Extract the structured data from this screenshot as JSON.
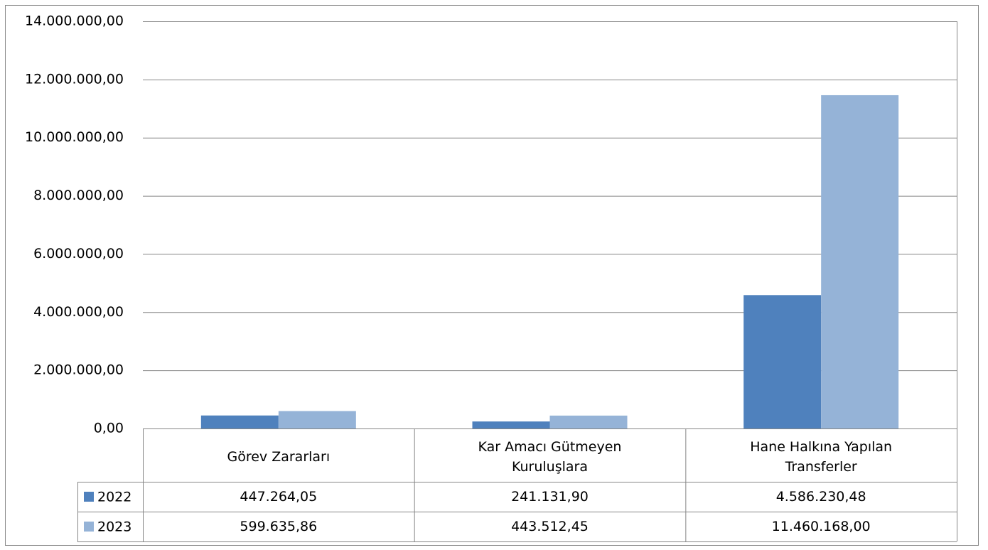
{
  "chart_data": {
    "type": "bar",
    "categories": [
      "Görev Zararları",
      "Kar Amacı Gütmeyen Kuruluşlara",
      "Hane Halkına Yapılan Transferler"
    ],
    "series": [
      {
        "name": "2022",
        "color": "#4f81bd",
        "values": [
          447264.05,
          241131.9,
          4586230.48
        ],
        "value_labels": [
          "447.264,05",
          "241.131,90",
          "4.586.230,48"
        ]
      },
      {
        "name": "2023",
        "color": "#95b3d7",
        "values": [
          599635.86,
          443512.45,
          11460168.0
        ],
        "value_labels": [
          "599.635,86",
          "443.512,45",
          "11.460.168,00"
        ]
      }
    ],
    "ylim": [
      0,
      14000000
    ],
    "yticks": [
      {
        "value": 0,
        "label": "0,00"
      },
      {
        "value": 2000000,
        "label": "2.000.000,00"
      },
      {
        "value": 4000000,
        "label": "4.000.000,00"
      },
      {
        "value": 6000000,
        "label": "6.000.000,00"
      },
      {
        "value": 8000000,
        "label": "8.000.000,00"
      },
      {
        "value": 10000000,
        "label": "10.000.000,00"
      },
      {
        "value": 12000000,
        "label": "12.000.000,00"
      },
      {
        "value": 14000000,
        "label": "14.000.000,00"
      }
    ],
    "grid": true
  }
}
